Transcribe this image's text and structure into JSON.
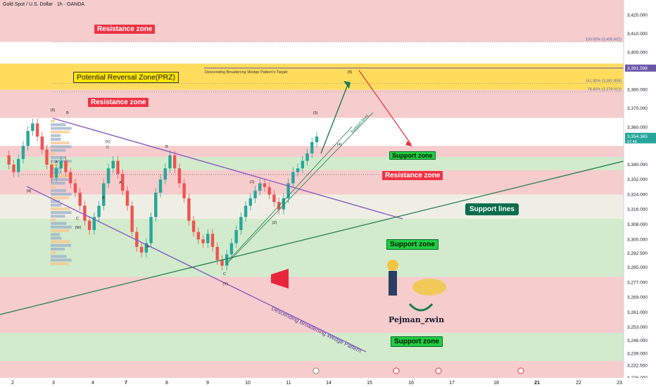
{
  "header": {
    "symbol_title": "Gold Spot / U.S. Dollar · 1h · OANDA"
  },
  "colors": {
    "resistance": "#f4c3c3",
    "resistance_label": "#ee3344",
    "support": "#c9e8c3",
    "support_label": "#22cc44",
    "prz": "#ffd84a",
    "wedge": "#8a5cc0",
    "support_line": "#1e7b4e",
    "up_candle": "#26a69a",
    "down_candle": "#ef5350",
    "target_arrow_up": "#1e7b4e",
    "target_arrow_down": "#e53340"
  },
  "labels": {
    "resistance_zone_top": "Resistance zone",
    "prz": "Potential Reversal Zone(PRZ)",
    "resistance_zone_mid": "Resistance zone",
    "support_zone_small": "Support zone",
    "resistance_zone_right": "Resistance zone",
    "support_lines_box": "Support lines",
    "support_zone_mid": "Support zone",
    "support_zone_bottom": "Support zone",
    "wedge_target": "Descending Broadening Wedge Pattern's Target",
    "wedge_pattern": "Descending Broadening Wedge Pattern",
    "support_lines_diag": "Support lines",
    "brand": "Pejman_zwin",
    "fib_100": "100.00% (3,405.602)",
    "fib_161": "161.80% (3,381.808)",
    "fib_786": "78.60% (3,378.912)"
  },
  "wave_labels": [
    "(5)",
    "B",
    "(4)",
    "A",
    "C",
    "(X)",
    "B",
    "A",
    "C",
    "(W)",
    "B",
    "A",
    "(1)",
    "(2)",
    "(3)",
    "(4)",
    "(5)",
    "C",
    "(Y)"
  ],
  "price_tags": {
    "current": "3,354.365",
    "countdown": "57:48",
    "target": "3,391.598"
  },
  "chart_data": {
    "type": "candlestick",
    "title": "Gold Spot / U.S. Dollar · 1h · OANDA",
    "y_ticks": [
      3420.0,
      3410.0,
      3400.0,
      3391.598,
      3380.0,
      3370.0,
      3360.0,
      3354.365,
      3340.0,
      3332.0,
      3324.0,
      3316.0,
      3308.0,
      3300.0,
      3292.5,
      3285.0,
      3277.0,
      3269.0,
      3261.0,
      3253.0,
      3246.0,
      3239.0,
      3232.5,
      3226.0
    ],
    "y_tick_labels": [
      "3,420.000",
      "3,410.000",
      "3,400.000",
      "3,391.598",
      "3,380.000",
      "3,370.000",
      "3,360.000",
      "3,354.365",
      "3,340.000",
      "3,332.000",
      "3,324.000",
      "3,316.000",
      "3,308.000",
      "3,300.000",
      "3,292.500",
      "3,285.000",
      "3,277.000",
      "3,269.000",
      "3,261.000",
      "3,253.000",
      "3,246.000",
      "3,239.000",
      "3,232.500",
      "3,226.000"
    ],
    "x_ticks": [
      "2",
      "3",
      "4",
      "7",
      "8",
      "9",
      "10",
      "11",
      "14",
      "15",
      "16",
      "17",
      "18",
      "21",
      "22",
      "23"
    ],
    "ylim": [
      3226,
      3428
    ],
    "zones": [
      {
        "kind": "resistance",
        "from": 3405.6,
        "to": 3430
      },
      {
        "kind": "prz",
        "from": 3380,
        "to": 3394
      },
      {
        "kind": "resistance",
        "from": 3365,
        "to": 3380
      },
      {
        "kind": "resistance",
        "from": 3344,
        "to": 3350
      },
      {
        "kind": "support",
        "from": 3337,
        "to": 3344
      },
      {
        "kind": "resistance",
        "from": 3324,
        "to": 3337
      },
      {
        "kind": "support",
        "from": 3280,
        "to": 3311
      },
      {
        "kind": "resistance",
        "from": 3250,
        "to": 3280
      },
      {
        "kind": "support",
        "from": 3235,
        "to": 3250
      },
      {
        "kind": "resistance",
        "from": 3226,
        "to": 3235
      }
    ],
    "close_path": [
      3345,
      3340,
      3336,
      3343,
      3350,
      3358,
      3362,
      3355,
      3348,
      3340,
      3333,
      3338,
      3342,
      3336,
      3330,
      3325,
      3318,
      3310,
      3305,
      3312,
      3318,
      3330,
      3338,
      3342,
      3335,
      3326,
      3318,
      3304,
      3296,
      3293,
      3298,
      3312,
      3325,
      3332,
      3338,
      3345,
      3338,
      3330,
      3322,
      3310,
      3304,
      3300,
      3298,
      3303,
      3296,
      3289,
      3286,
      3292,
      3298,
      3305,
      3312,
      3318,
      3322,
      3326,
      3330,
      3328,
      3324,
      3320,
      3316,
      3322,
      3330,
      3336,
      3338,
      3342,
      3346,
      3352,
      3355
    ]
  }
}
